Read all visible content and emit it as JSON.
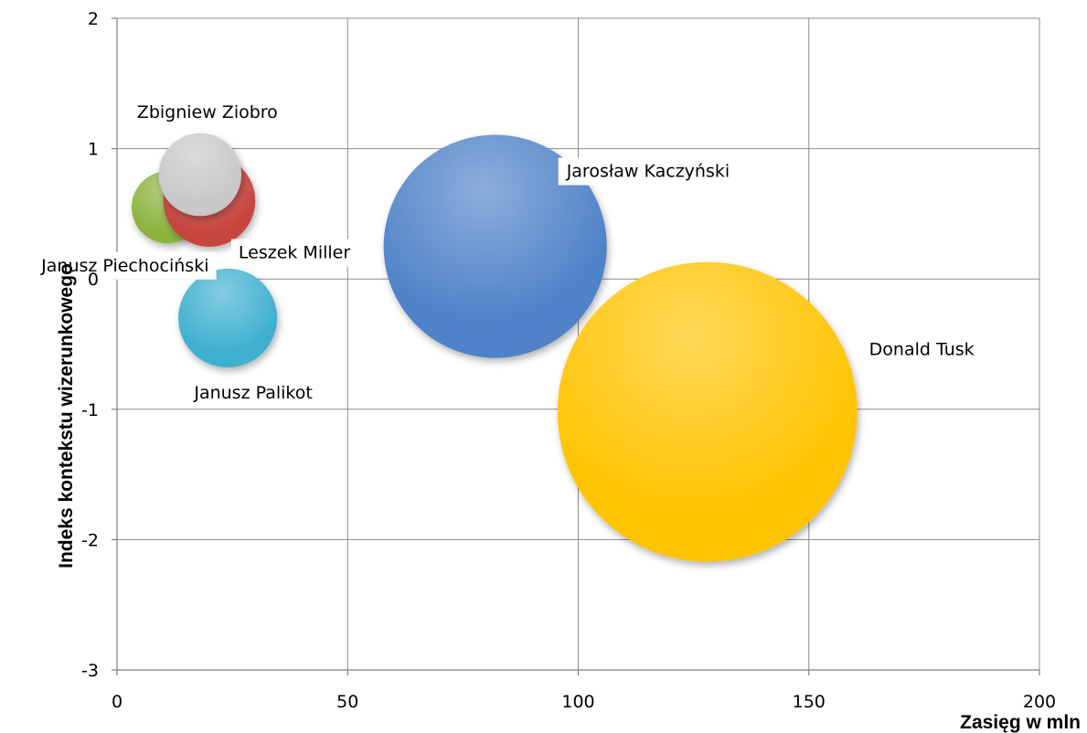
{
  "chart_data": {
    "type": "bubble",
    "title": "",
    "xlabel": "Zasięg w mln",
    "ylabel": "Indeks kontekstu wizerunkowego",
    "xlim": [
      0,
      200
    ],
    "ylim": [
      -3,
      2
    ],
    "x_ticks": [
      {
        "value": 0,
        "label": "0"
      },
      {
        "value": 50,
        "label": "50"
      },
      {
        "value": 100,
        "label": "100"
      },
      {
        "value": 150,
        "label": "150"
      },
      {
        "value": 200,
        "label": "200"
      }
    ],
    "y_ticks": [
      {
        "value": 2,
        "label": "2"
      },
      {
        "value": 1,
        "label": "1"
      },
      {
        "value": 0,
        "label": "0"
      },
      {
        "value": -1,
        "label": "-1"
      },
      {
        "value": -2,
        "label": "-2"
      },
      {
        "value": -3,
        "label": "-3"
      }
    ],
    "grid": true,
    "legend": "none",
    "series": [
      {
        "name": "Janusz Piechociński",
        "x": 11,
        "y": 0.55,
        "size": 1.6,
        "color": "#8CB43C",
        "label_position": "below-left"
      },
      {
        "name": "Leszek Miller",
        "x": 20,
        "y": 0.6,
        "size": 2.6,
        "color": "#C8453E",
        "label_position": "below-right"
      },
      {
        "name": "Zbigniew Ziobro",
        "x": 18,
        "y": 0.8,
        "size": 2.1,
        "color": "#C8C8C8",
        "label_position": "above"
      },
      {
        "name": "Janusz Palikot",
        "x": 24,
        "y": -0.3,
        "size": 3.0,
        "color": "#40B0D0",
        "label_position": "below"
      },
      {
        "name": "Jarosław Kaczyński",
        "x": 82,
        "y": 0.25,
        "size": 15.3,
        "color": "#4F82C8",
        "label_position": "above-right"
      },
      {
        "name": "Donald Tusk",
        "x": 128,
        "y": -1.02,
        "size": 27.6,
        "color": "#FFC400",
        "label_position": "right"
      }
    ]
  }
}
